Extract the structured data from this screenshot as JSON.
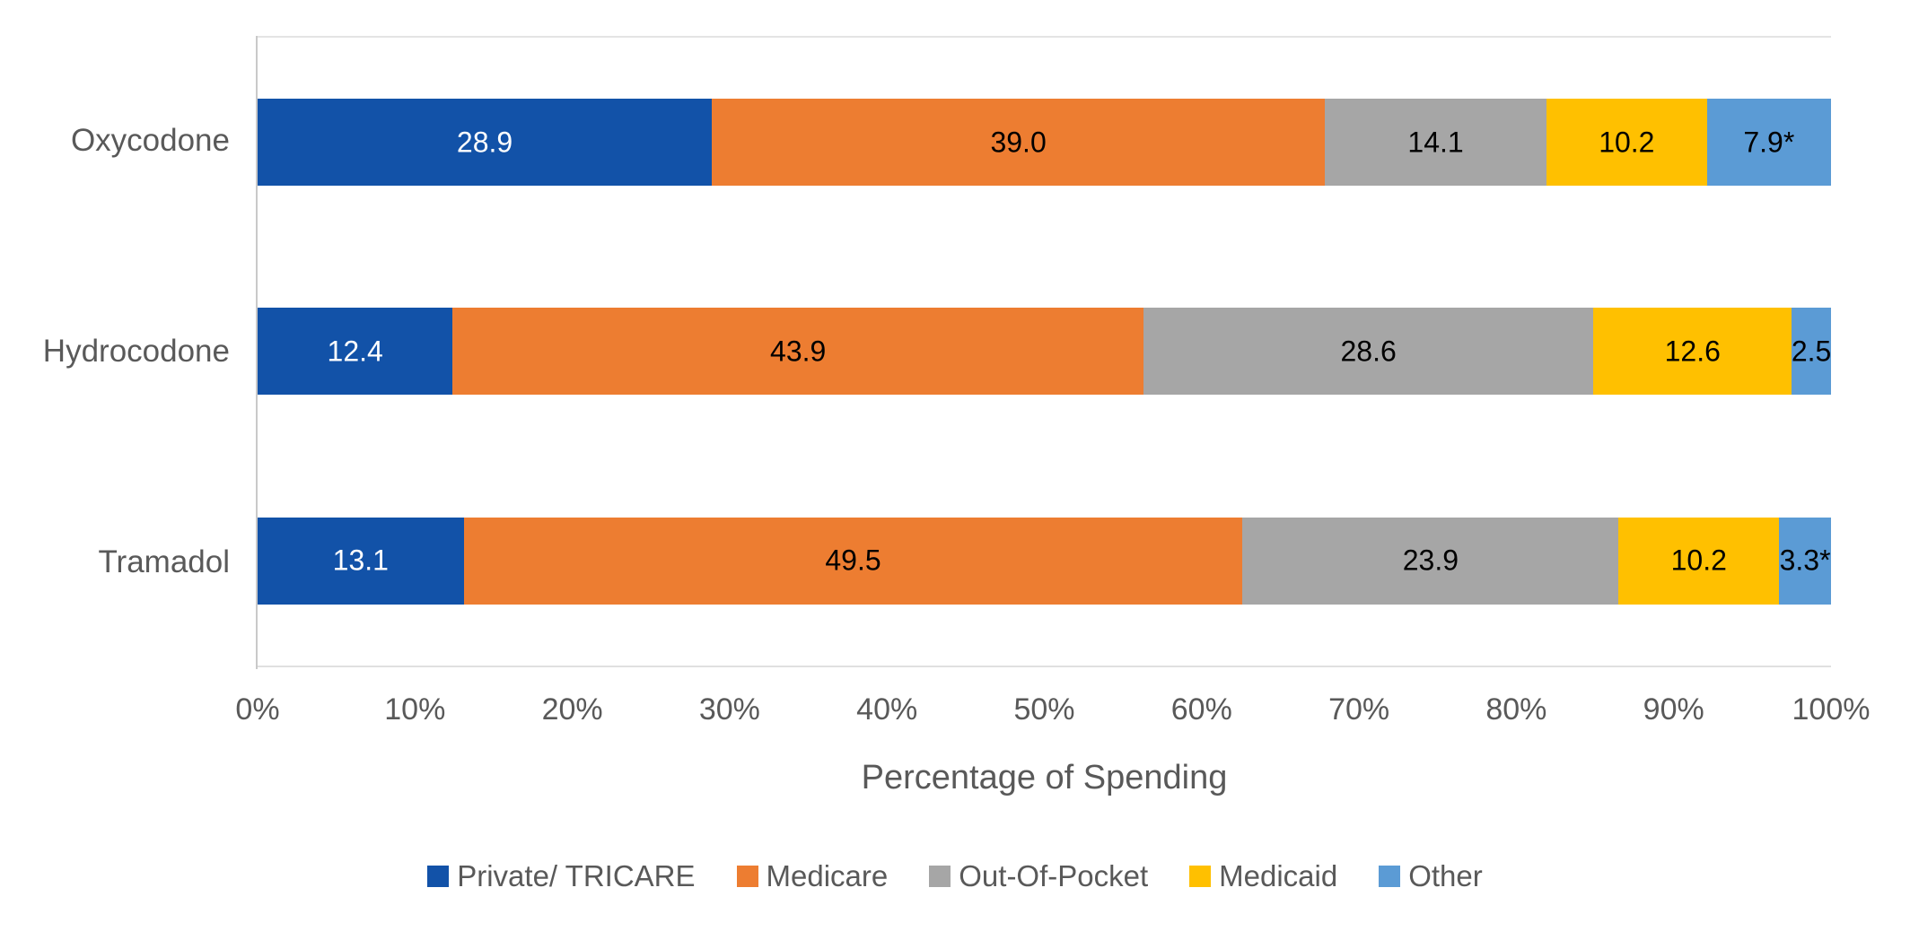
{
  "chart_data": {
    "type": "bar",
    "orientation": "horizontal",
    "stacked": true,
    "title": "",
    "xlabel": "Percentage of Spending",
    "ylabel": "",
    "xlim": [
      0,
      100
    ],
    "grid": false,
    "legend_position": "bottom",
    "text_color": "#595959",
    "categories": [
      "Oxycodone",
      "Hydrocodone",
      "Tramadol"
    ],
    "x_ticks": [
      "0%",
      "10%",
      "20%",
      "30%",
      "40%",
      "50%",
      "60%",
      "70%",
      "80%",
      "90%",
      "100%"
    ],
    "series": [
      {
        "name": "Private/ TRICARE",
        "color": "#1252a8",
        "label_color": "#ffffff",
        "values": [
          28.9,
          12.4,
          13.1
        ],
        "value_labels": [
          "28.9",
          "12.4",
          "13.1"
        ]
      },
      {
        "name": "Medicare",
        "color": "#ed7d31",
        "label_color": "#000000",
        "values": [
          39.0,
          43.9,
          49.5
        ],
        "value_labels": [
          "39.0",
          "43.9",
          "49.5"
        ]
      },
      {
        "name": "Out-Of-Pocket",
        "color": "#a6a6a6",
        "label_color": "#000000",
        "values": [
          14.1,
          28.6,
          23.9
        ],
        "value_labels": [
          "14.1",
          "28.6",
          "23.9"
        ]
      },
      {
        "name": "Medicaid",
        "color": "#ffc000",
        "label_color": "#000000",
        "values": [
          10.2,
          12.6,
          10.2
        ],
        "value_labels": [
          "10.2",
          "12.6",
          "10.2"
        ]
      },
      {
        "name": "Other",
        "color": "#5b9bd5",
        "label_color": "#000000",
        "values": [
          7.9,
          2.5,
          3.3
        ],
        "value_labels": [
          "7.9*",
          "2.5",
          "3.3*"
        ]
      }
    ]
  }
}
